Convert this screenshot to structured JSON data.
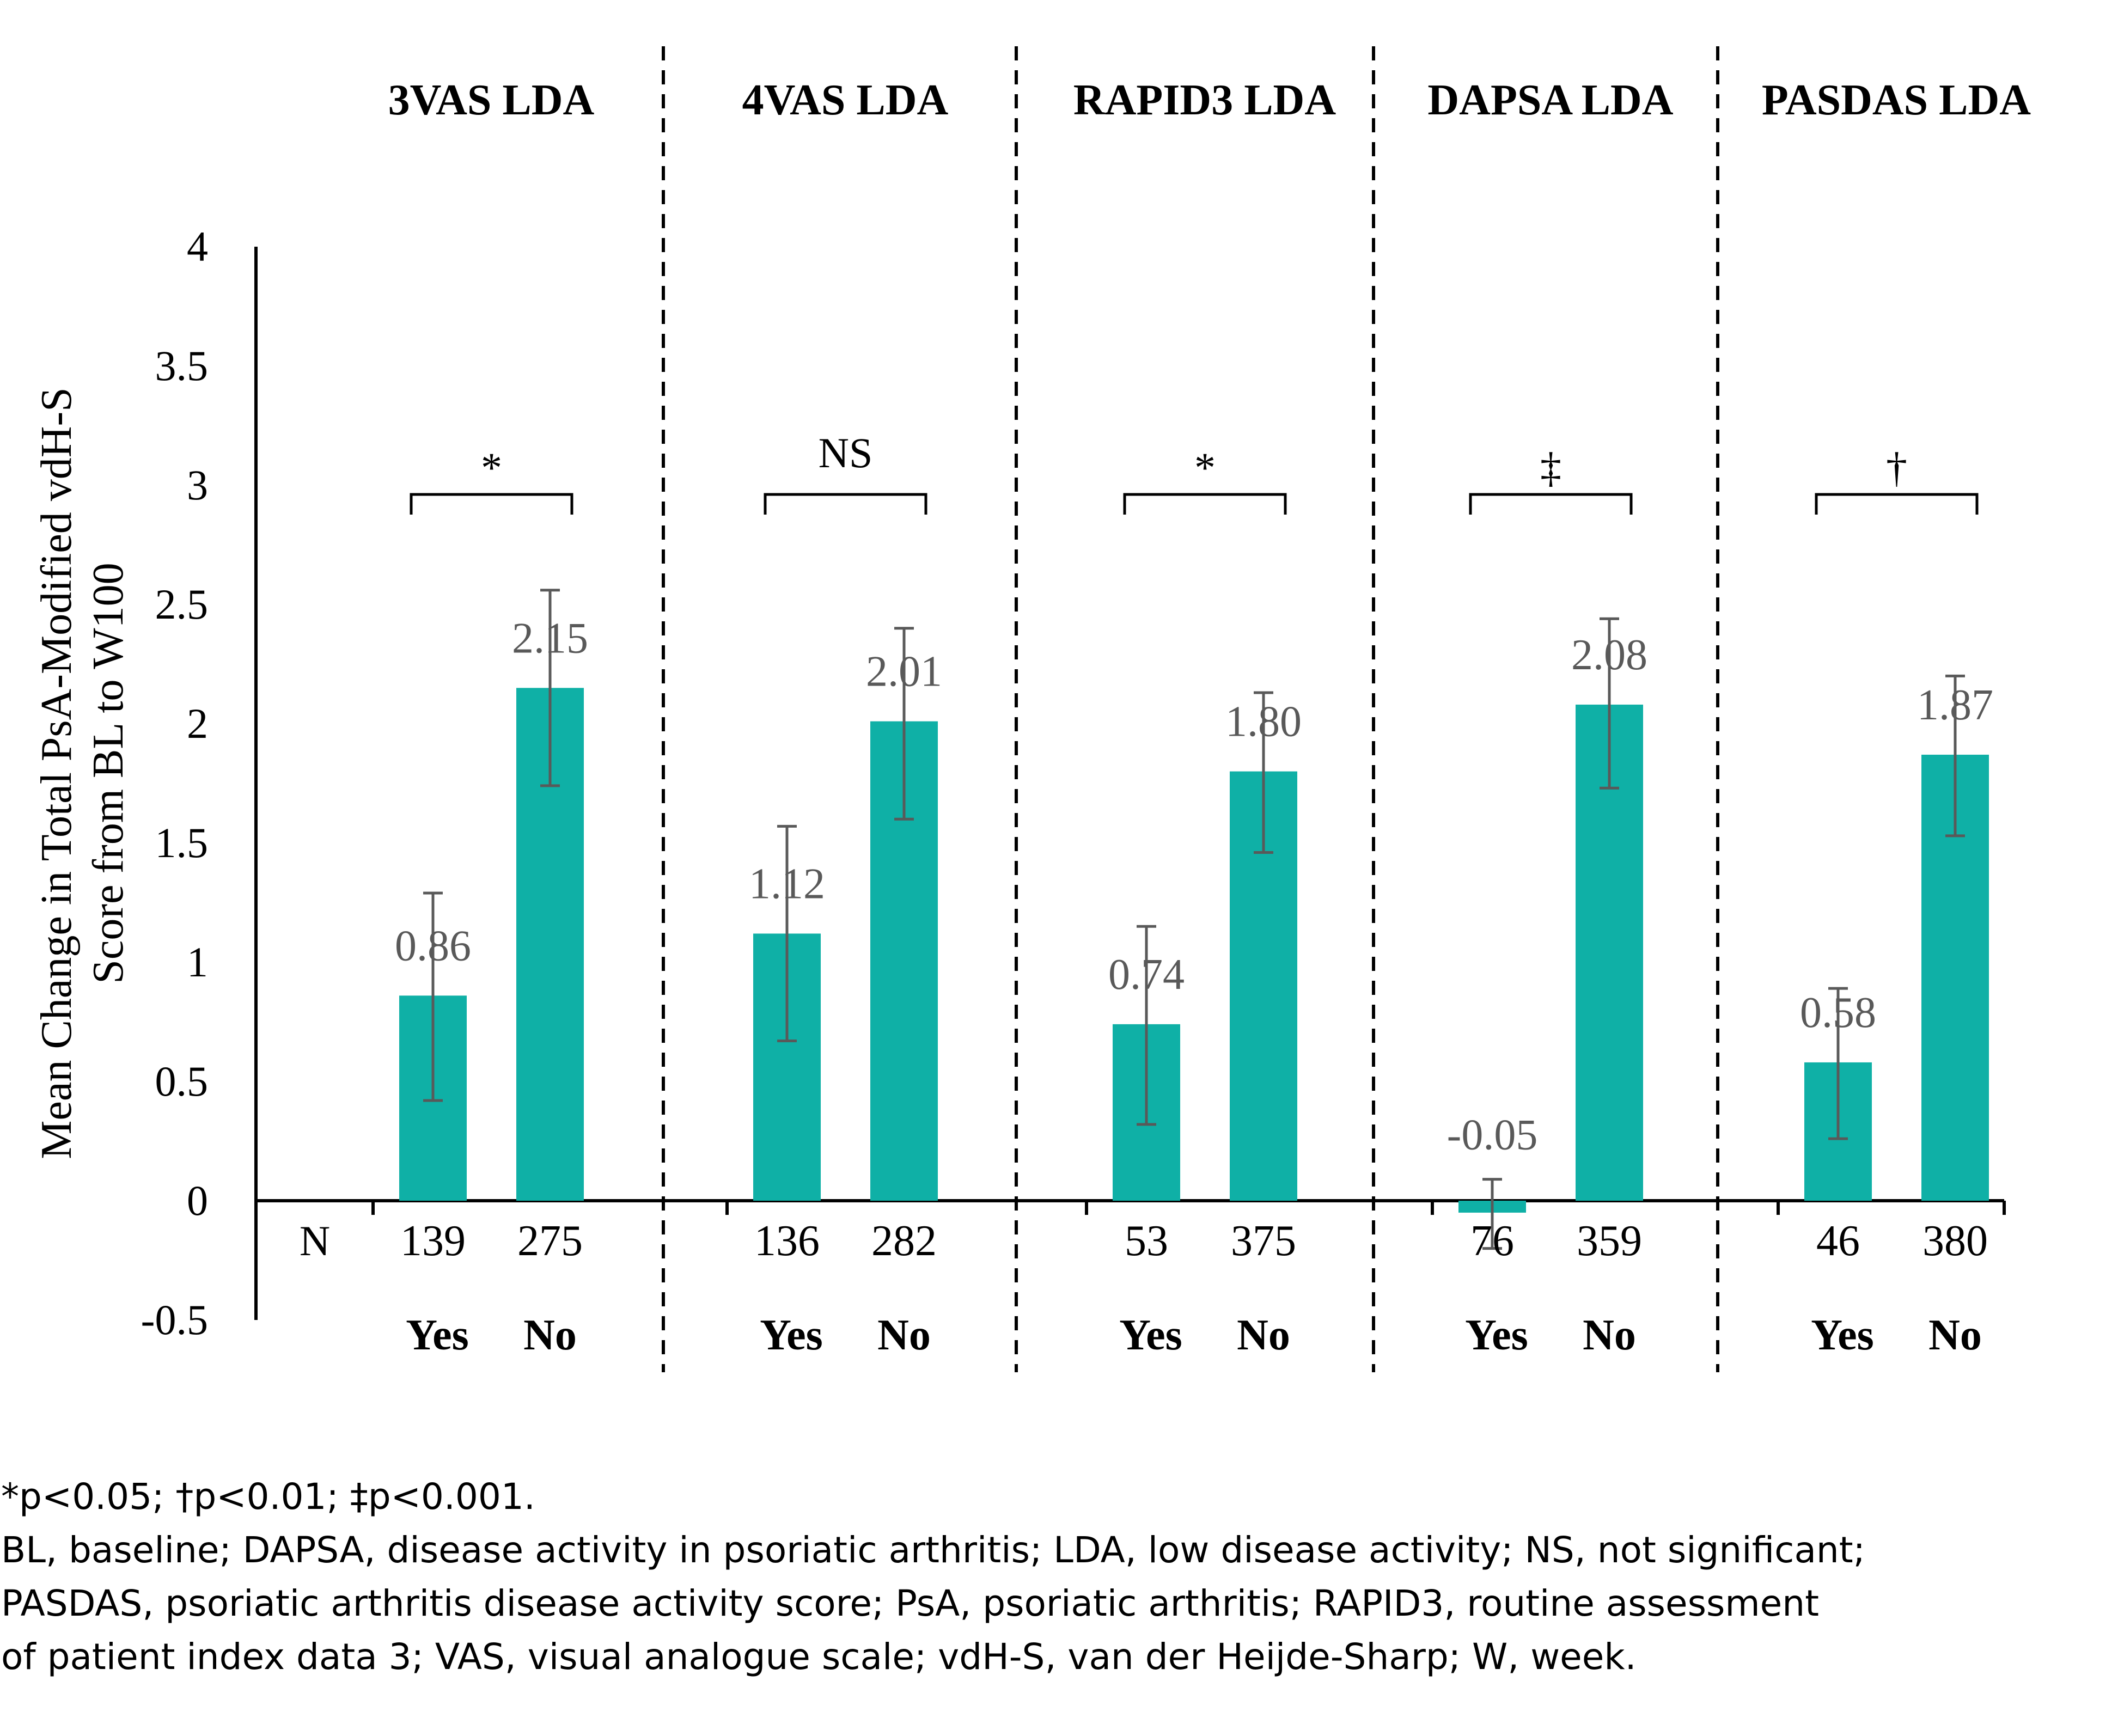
{
  "chart_data": {
    "type": "bar",
    "ylabel_lines": [
      "Mean Change in Total PsA-Modified vdH-S",
      "Score from BL to W100"
    ],
    "ylim": [
      -0.5,
      4
    ],
    "yticks": [
      -0.5,
      0,
      0.5,
      1,
      1.5,
      2,
      2.5,
      3,
      3.5,
      4
    ],
    "ytick_labels": [
      "-0.5",
      "0",
      "0.5",
      "1",
      "1.5",
      "2",
      "2.5",
      "3",
      "3.5",
      "4"
    ],
    "n_label": "N",
    "bar_color": "#0fb0a6",
    "error_color": "#595959",
    "groups": [
      {
        "title": "3VAS LDA",
        "significance": "*",
        "bars": [
          {
            "category": "Yes",
            "n": "139",
            "value": 0.86,
            "label": "0.86",
            "err_low": 0.42,
            "err_high": 1.29
          },
          {
            "category": "No",
            "n": "275",
            "value": 2.15,
            "label": "2.15",
            "err_low": 1.74,
            "err_high": 2.56
          }
        ]
      },
      {
        "title": "4VAS LDA",
        "significance": "NS",
        "bars": [
          {
            "category": "Yes",
            "n": "136",
            "value": 1.12,
            "label": "1.12",
            "err_low": 0.67,
            "err_high": 1.57
          },
          {
            "category": "No",
            "n": "282",
            "value": 2.01,
            "label": "2.01",
            "err_low": 1.6,
            "err_high": 2.4
          }
        ]
      },
      {
        "title": "RAPID3 LDA",
        "significance": "*",
        "bars": [
          {
            "category": "Yes",
            "n": "53",
            "value": 0.74,
            "label": "0.74",
            "err_low": 0.32,
            "err_high": 1.15
          },
          {
            "category": "No",
            "n": "375",
            "value": 1.8,
            "label": "1.80",
            "err_low": 1.46,
            "err_high": 2.13
          }
        ]
      },
      {
        "title": "DAPSA LDA",
        "significance": "‡",
        "bars": [
          {
            "category": "Yes",
            "n": "76",
            "value": -0.05,
            "label": "-0.05",
            "err_low": -0.2,
            "err_high": 0.09
          },
          {
            "category": "No",
            "n": "359",
            "value": 2.08,
            "label": "2.08",
            "err_low": 1.73,
            "err_high": 2.44
          }
        ]
      },
      {
        "title": "PASDAS LDA",
        "significance": "†",
        "bars": [
          {
            "category": "Yes",
            "n": "46",
            "value": 0.58,
            "label": "0.58",
            "err_low": 0.26,
            "err_high": 0.89
          },
          {
            "category": "No",
            "n": "380",
            "value": 1.87,
            "label": "1.87",
            "err_low": 1.53,
            "err_high": 2.2
          }
        ]
      }
    ]
  },
  "footnotes": {
    "significance_key": "*p<0.05; †p<0.01; ‡p<0.001.",
    "abbrev_line1": "BL, baseline; DAPSA, disease activity in psoriatic arthritis; LDA, low disease activity; NS, not significant;",
    "abbrev_line2": "PASDAS, psoriatic arthritis disease activity score; PsA, psoriatic arthritis; RAPID3, routine assessment",
    "abbrev_line3": "of patient index data 3; VAS, visual analogue scale; vdH-S, van der Heijde-Sharp; W, week."
  }
}
